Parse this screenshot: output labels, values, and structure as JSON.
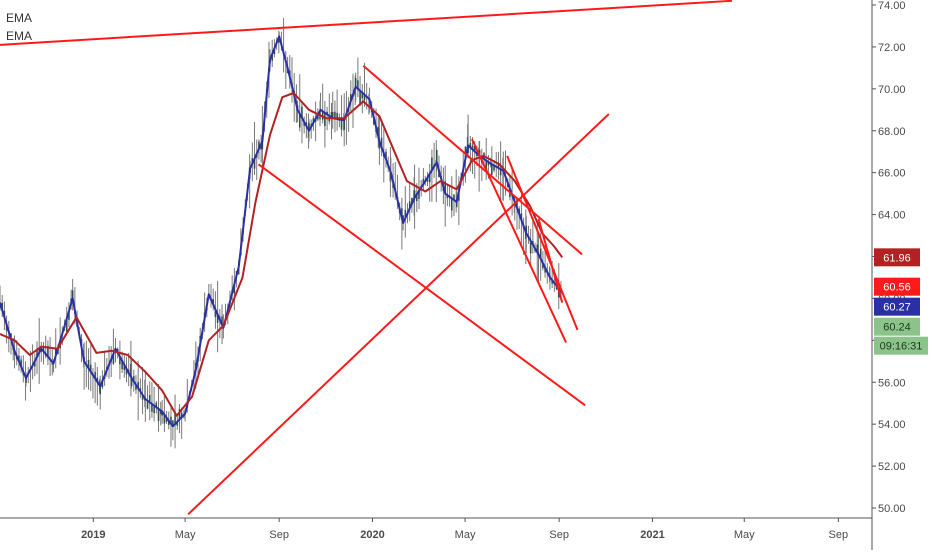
{
  "legend": [
    "EMA",
    "EMA"
  ],
  "colors": {
    "ema_fast": "#2b2fa6",
    "ema_slow": "#b22222",
    "trendline": "#ff1a1a",
    "candle_body": "#2f4f4f",
    "candle_wick": "#777777",
    "axis_text": "#4a4a4a",
    "grid_axis": "#555555"
  },
  "chart_data": {
    "type": "line",
    "title": "",
    "xlabel": "",
    "ylabel": "",
    "ylim": [
      49.7,
      74.2
    ],
    "y_ticks": [
      74,
      72,
      70,
      68,
      66,
      64,
      62,
      60,
      58,
      56,
      54,
      52,
      50
    ],
    "y_tick_labels": [
      "74.00",
      "72.00",
      "70.00",
      "68.00",
      "66.00",
      "64.00",
      "62.00",
      "60.00",
      "58.00",
      "56.00",
      "54.00",
      "52.00",
      "50.00"
    ],
    "x_range": [
      "2018-09-01",
      "2021-10-15"
    ],
    "x_ticks": [
      {
        "label": "2019",
        "date": "2019-01-01",
        "bold": true
      },
      {
        "label": "May",
        "date": "2019-05-01",
        "bold": false
      },
      {
        "label": "Sep",
        "date": "2019-09-01",
        "bold": false
      },
      {
        "label": "2020",
        "date": "2020-01-01",
        "bold": true
      },
      {
        "label": "May",
        "date": "2020-05-01",
        "bold": false
      },
      {
        "label": "Sep",
        "date": "2020-09-01",
        "bold": false
      },
      {
        "label": "2021",
        "date": "2021-01-01",
        "bold": true
      },
      {
        "label": "May",
        "date": "2021-05-01",
        "bold": false
      },
      {
        "label": "Sep",
        "date": "2021-09-01",
        "bold": false
      }
    ],
    "series": [
      {
        "name": "EMA",
        "role": "fast",
        "points": [
          {
            "x": "2018-09-01",
            "y": 59.8
          },
          {
            "x": "2018-09-20",
            "y": 57.5
          },
          {
            "x": "2018-10-05",
            "y": 56.2
          },
          {
            "x": "2018-10-25",
            "y": 57.6
          },
          {
            "x": "2018-11-10",
            "y": 56.9
          },
          {
            "x": "2018-12-05",
            "y": 60.0
          },
          {
            "x": "2018-12-20",
            "y": 57.0
          },
          {
            "x": "2019-01-10",
            "y": 55.8
          },
          {
            "x": "2019-01-30",
            "y": 57.6
          },
          {
            "x": "2019-02-20",
            "y": 56.2
          },
          {
            "x": "2019-03-10",
            "y": 55.2
          },
          {
            "x": "2019-04-01",
            "y": 54.6
          },
          {
            "x": "2019-04-15",
            "y": 53.9
          },
          {
            "x": "2019-05-01",
            "y": 54.5
          },
          {
            "x": "2019-05-15",
            "y": 56.6
          },
          {
            "x": "2019-06-01",
            "y": 60.2
          },
          {
            "x": "2019-06-20",
            "y": 58.6
          },
          {
            "x": "2019-07-10",
            "y": 61.5
          },
          {
            "x": "2019-07-25",
            "y": 66.2
          },
          {
            "x": "2019-08-10",
            "y": 67.5
          },
          {
            "x": "2019-08-20",
            "y": 71.4
          },
          {
            "x": "2019-09-01",
            "y": 72.5
          },
          {
            "x": "2019-09-12",
            "y": 71.0
          },
          {
            "x": "2019-09-25",
            "y": 69.0
          },
          {
            "x": "2019-10-10",
            "y": 68.0
          },
          {
            "x": "2019-10-25",
            "y": 69.0
          },
          {
            "x": "2019-11-10",
            "y": 68.6
          },
          {
            "x": "2019-11-25",
            "y": 68.5
          },
          {
            "x": "2019-12-10",
            "y": 70.1
          },
          {
            "x": "2019-12-28",
            "y": 69.5
          },
          {
            "x": "2020-01-10",
            "y": 67.5
          },
          {
            "x": "2020-01-25",
            "y": 66.0
          },
          {
            "x": "2020-02-10",
            "y": 63.6
          },
          {
            "x": "2020-02-25",
            "y": 64.8
          },
          {
            "x": "2020-03-10",
            "y": 65.6
          },
          {
            "x": "2020-03-25",
            "y": 66.5
          },
          {
            "x": "2020-04-05",
            "y": 65.0
          },
          {
            "x": "2020-04-20",
            "y": 64.6
          },
          {
            "x": "2020-05-05",
            "y": 67.3
          },
          {
            "x": "2020-05-20",
            "y": 66.8
          },
          {
            "x": "2020-06-05",
            "y": 66.4
          },
          {
            "x": "2020-06-20",
            "y": 66.1
          },
          {
            "x": "2020-07-05",
            "y": 64.6
          },
          {
            "x": "2020-07-20",
            "y": 63.1
          },
          {
            "x": "2020-08-05",
            "y": 62.1
          },
          {
            "x": "2020-08-20",
            "y": 61.0
          },
          {
            "x": "2020-09-05",
            "y": 60.27
          }
        ]
      },
      {
        "name": "EMA",
        "role": "slow",
        "points": [
          {
            "x": "2018-09-01",
            "y": 58.3
          },
          {
            "x": "2018-09-20",
            "y": 58.0
          },
          {
            "x": "2018-10-10",
            "y": 57.3
          },
          {
            "x": "2018-10-25",
            "y": 57.7
          },
          {
            "x": "2018-11-15",
            "y": 57.6
          },
          {
            "x": "2018-12-10",
            "y": 59.1
          },
          {
            "x": "2019-01-05",
            "y": 57.4
          },
          {
            "x": "2019-01-25",
            "y": 57.5
          },
          {
            "x": "2019-02-15",
            "y": 57.3
          },
          {
            "x": "2019-03-10",
            "y": 56.5
          },
          {
            "x": "2019-04-01",
            "y": 55.6
          },
          {
            "x": "2019-04-20",
            "y": 54.4
          },
          {
            "x": "2019-05-10",
            "y": 55.3
          },
          {
            "x": "2019-06-01",
            "y": 58.0
          },
          {
            "x": "2019-06-20",
            "y": 58.7
          },
          {
            "x": "2019-07-15",
            "y": 61.0
          },
          {
            "x": "2019-08-01",
            "y": 64.6
          },
          {
            "x": "2019-08-20",
            "y": 67.8
          },
          {
            "x": "2019-09-05",
            "y": 69.6
          },
          {
            "x": "2019-09-20",
            "y": 69.8
          },
          {
            "x": "2019-10-10",
            "y": 69.0
          },
          {
            "x": "2019-11-01",
            "y": 68.6
          },
          {
            "x": "2019-11-25",
            "y": 68.6
          },
          {
            "x": "2019-12-20",
            "y": 69.4
          },
          {
            "x": "2020-01-10",
            "y": 68.7
          },
          {
            "x": "2020-01-25",
            "y": 67.4
          },
          {
            "x": "2020-02-15",
            "y": 65.6
          },
          {
            "x": "2020-03-10",
            "y": 65.1
          },
          {
            "x": "2020-03-30",
            "y": 65.6
          },
          {
            "x": "2020-04-20",
            "y": 65.2
          },
          {
            "x": "2020-05-10",
            "y": 66.6
          },
          {
            "x": "2020-05-25",
            "y": 66.8
          },
          {
            "x": "2020-06-15",
            "y": 66.4
          },
          {
            "x": "2020-07-05",
            "y": 65.6
          },
          {
            "x": "2020-07-25",
            "y": 64.4
          },
          {
            "x": "2020-08-10",
            "y": 63.1
          },
          {
            "x": "2020-08-25",
            "y": 62.5
          },
          {
            "x": "2020-09-05",
            "y": 61.96
          }
        ]
      }
    ],
    "trendlines": [
      {
        "x1": "2018-09-01",
        "y1": 72.1,
        "x2": "2021-04-15",
        "y2": 74.2
      },
      {
        "x1": "2019-08-05",
        "y1": 66.4,
        "x2": "2020-10-05",
        "y2": 54.9
      },
      {
        "x1": "2019-12-20",
        "y1": 71.1,
        "x2": "2020-10-01",
        "y2": 62.1
      },
      {
        "x1": "2019-05-05",
        "y1": 49.7,
        "x2": "2020-11-05",
        "y2": 68.8
      },
      {
        "x1": "2020-05-10",
        "y1": 67.6,
        "x2": "2020-09-10",
        "y2": 57.9
      },
      {
        "x1": "2020-06-25",
        "y1": 66.8,
        "x2": "2020-09-25",
        "y2": 58.5
      },
      {
        "x1": "2020-08-05",
        "y1": 63.8,
        "x2": "2020-09-05",
        "y2": 59.8
      }
    ],
    "price_labels": [
      {
        "value": 61.96,
        "text": "61.96",
        "color": "#b22222"
      },
      {
        "value": 60.56,
        "text": "60.56",
        "color": "#ff1a1a"
      },
      {
        "value": 60.27,
        "text": "60.27",
        "color": "#2b2fa6"
      },
      {
        "value": 60.24,
        "text": "60.24",
        "color": "#8bc38b"
      }
    ],
    "countdown": {
      "text": "09:16:31",
      "color": "#8bc38b"
    }
  }
}
